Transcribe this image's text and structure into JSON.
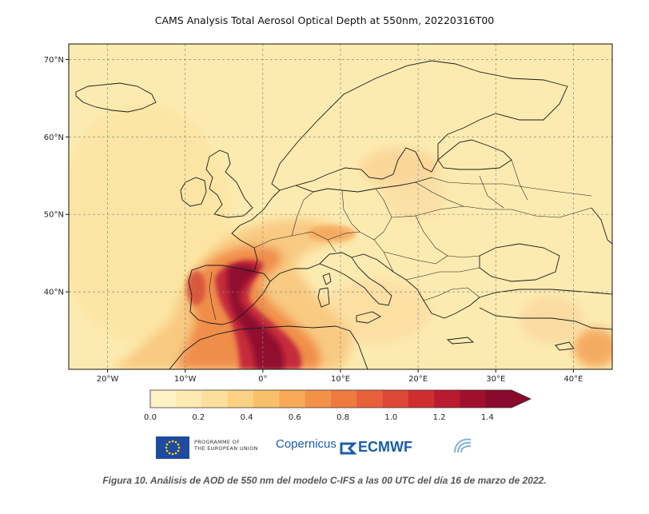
{
  "header": {
    "title": "CAMS Analysis Total Aerosol Optical Depth at 550nm, 20220316T00"
  },
  "map": {
    "extent": {
      "lon_min": -25,
      "lon_max": 45,
      "lat_min": 30,
      "lat_max": 72
    },
    "grid": true,
    "lon_ticks": [
      {
        "value": -20,
        "label": "20°W"
      },
      {
        "value": -10,
        "label": "10°W"
      },
      {
        "value": 0,
        "label": "0°"
      },
      {
        "value": 10,
        "label": "10°E"
      },
      {
        "value": 20,
        "label": "20°E"
      },
      {
        "value": 30,
        "label": "30°E"
      },
      {
        "value": 40,
        "label": "40°E"
      }
    ],
    "lat_ticks": [
      {
        "value": 70,
        "label": "70°N"
      },
      {
        "value": 60,
        "label": "60°N"
      },
      {
        "value": 50,
        "label": "50°N"
      },
      {
        "value": 40,
        "label": "40°N"
      }
    ],
    "background_color": "#fcebb0"
  },
  "colorbar": {
    "min": 0.0,
    "max": 1.5,
    "extend": "max",
    "tick_labels": [
      "0.0",
      "0.2",
      "0.4",
      "0.6",
      "0.8",
      "1.0",
      "1.2",
      "1.4"
    ],
    "colors": [
      "#fff2c4",
      "#fde9b1",
      "#fcdf9a",
      "#fbd283",
      "#f9bf6a",
      "#f7a957",
      "#f39149",
      "#ee7a3f",
      "#e8603a",
      "#de4735",
      "#cf2e31",
      "#b81b30",
      "#a0102e",
      "#880a2c"
    ]
  },
  "logos": {
    "eu_text_line1": "PROGRAMME OF",
    "eu_text_line2": "THE EUROPEAN UNION",
    "copernicus": "Copernicus",
    "ecmwf": "ECMWF"
  },
  "caption": "Figura 10. Análisis de AOD de 550 nm del modelo C-IFS a las 00 UTC del día 16 de marzo de 2022."
}
